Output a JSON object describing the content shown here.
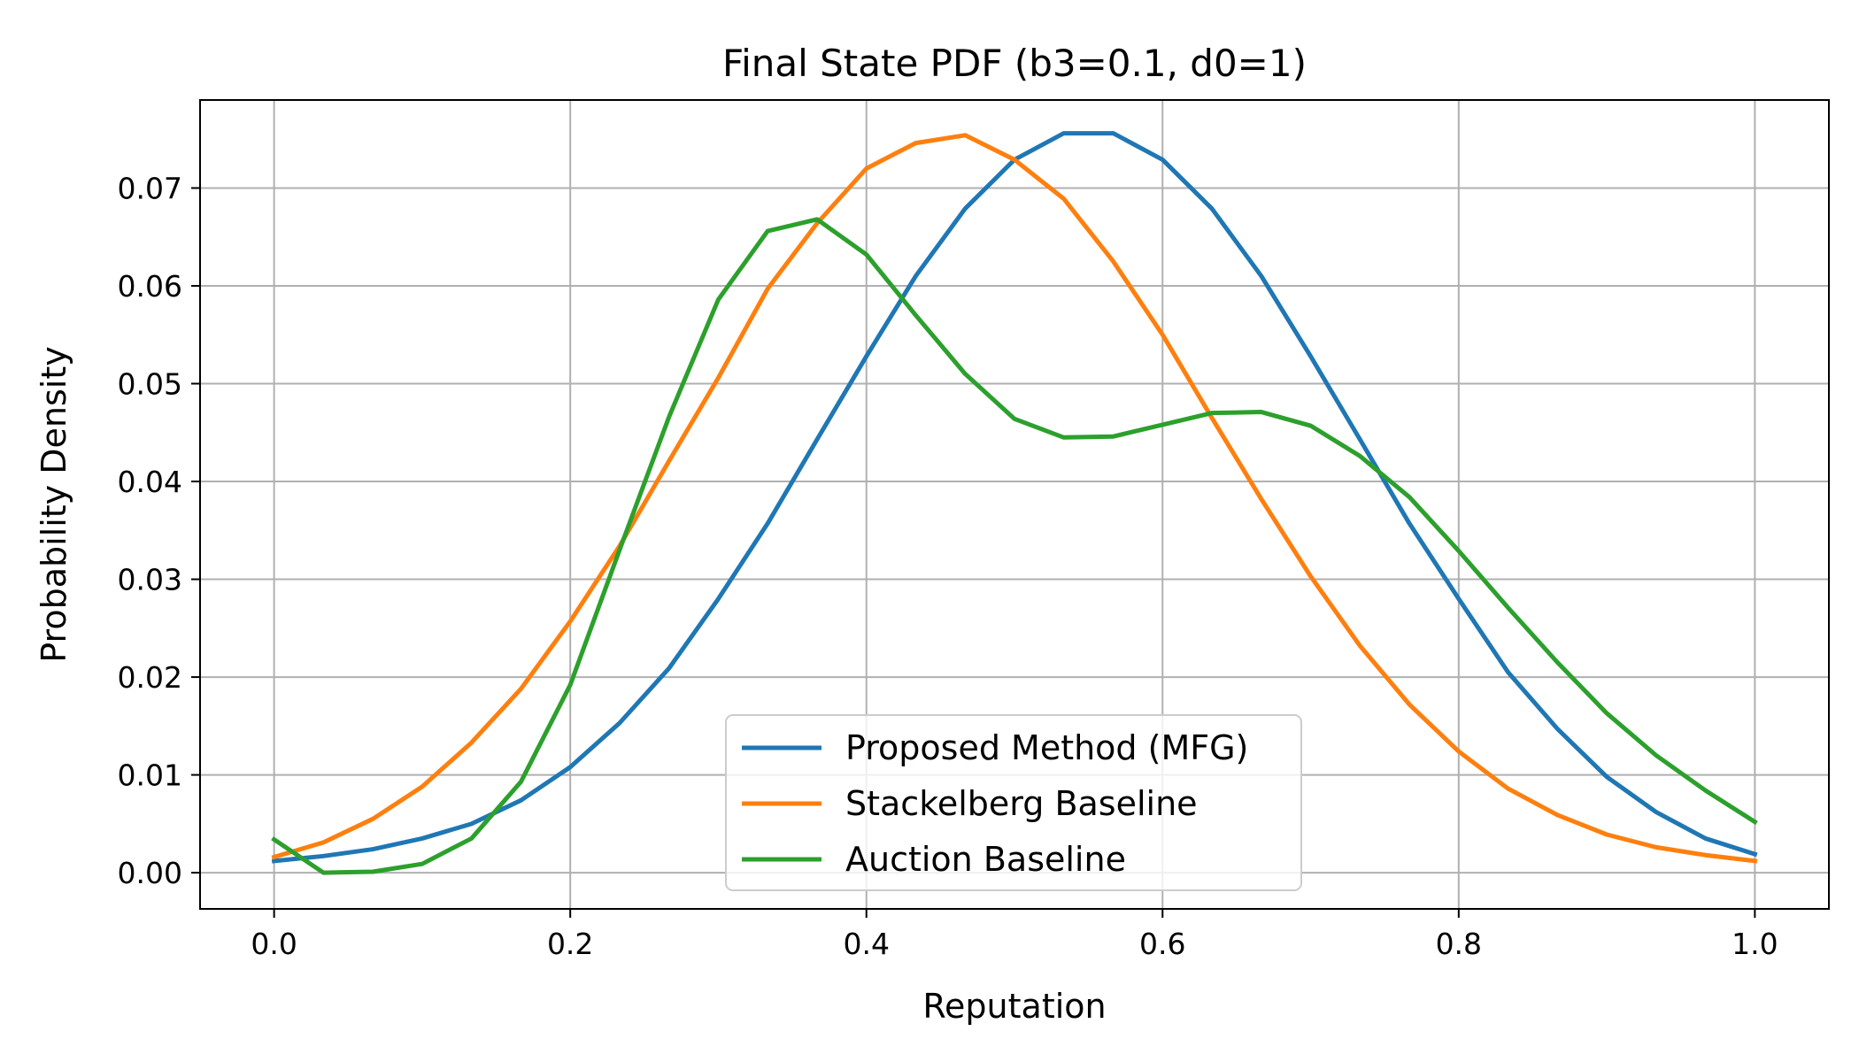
{
  "chart_data": {
    "type": "line",
    "title": "Final State PDF (b3=0.1, d0=1)",
    "xlabel": "Reputation",
    "ylabel": "Probability Density",
    "xlim": [
      -0.05,
      1.05
    ],
    "ylim": [
      -0.0037,
      0.079
    ],
    "x_ticks": [
      0.0,
      0.2,
      0.4,
      0.6,
      0.8,
      1.0
    ],
    "x_tick_labels": [
      "0.0",
      "0.2",
      "0.4",
      "0.6",
      "0.8",
      "1.0"
    ],
    "y_ticks": [
      0.0,
      0.01,
      0.02,
      0.03,
      0.04,
      0.05,
      0.06,
      0.07
    ],
    "y_tick_labels": [
      "0.00",
      "0.01",
      "0.02",
      "0.03",
      "0.04",
      "0.05",
      "0.06",
      "0.07"
    ],
    "grid": true,
    "legend_position": "lower-center",
    "x": [
      0.0,
      0.0333,
      0.0667,
      0.1,
      0.1333,
      0.1667,
      0.2,
      0.2333,
      0.2667,
      0.3,
      0.3333,
      0.3667,
      0.4,
      0.4333,
      0.4667,
      0.5,
      0.5333,
      0.5667,
      0.6,
      0.6333,
      0.6667,
      0.7,
      0.7333,
      0.7667,
      0.8,
      0.8333,
      0.8667,
      0.9,
      0.9333,
      0.9667,
      1.0
    ],
    "series": [
      {
        "name": "Proposed Method (MFG)",
        "color": "#1f77b4",
        "values": [
          0.0012,
          0.0017,
          0.0024,
          0.0035,
          0.005,
          0.0074,
          0.0108,
          0.0153,
          0.0209,
          0.028,
          0.0357,
          0.0443,
          0.0528,
          0.061,
          0.0679,
          0.0729,
          0.0756,
          0.0756,
          0.0729,
          0.0679,
          0.061,
          0.0528,
          0.0443,
          0.0357,
          0.028,
          0.0205,
          0.0147,
          0.0098,
          0.0062,
          0.0035,
          0.0019
        ]
      },
      {
        "name": "Stackelberg Baseline",
        "color": "#ff7f0e",
        "values": [
          0.0016,
          0.0031,
          0.0055,
          0.0088,
          0.0133,
          0.0188,
          0.0257,
          0.0334,
          0.0421,
          0.0506,
          0.0597,
          0.0664,
          0.072,
          0.0746,
          0.0754,
          0.0729,
          0.0689,
          0.0625,
          0.055,
          0.0465,
          0.0382,
          0.0303,
          0.0232,
          0.0172,
          0.0124,
          0.0086,
          0.0059,
          0.0039,
          0.0026,
          0.0018,
          0.0012
        ]
      },
      {
        "name": "Auction Baseline",
        "color": "#2ca02c",
        "values": [
          0.0034,
          0.0,
          0.0001,
          0.0009,
          0.0035,
          0.0093,
          0.0192,
          0.033,
          0.0466,
          0.0586,
          0.0656,
          0.0668,
          0.0632,
          0.057,
          0.051,
          0.0464,
          0.0445,
          0.0446,
          0.0458,
          0.047,
          0.0471,
          0.0457,
          0.0426,
          0.0384,
          0.0329,
          0.0271,
          0.0215,
          0.0163,
          0.012,
          0.0084,
          0.0052
        ]
      }
    ]
  }
}
